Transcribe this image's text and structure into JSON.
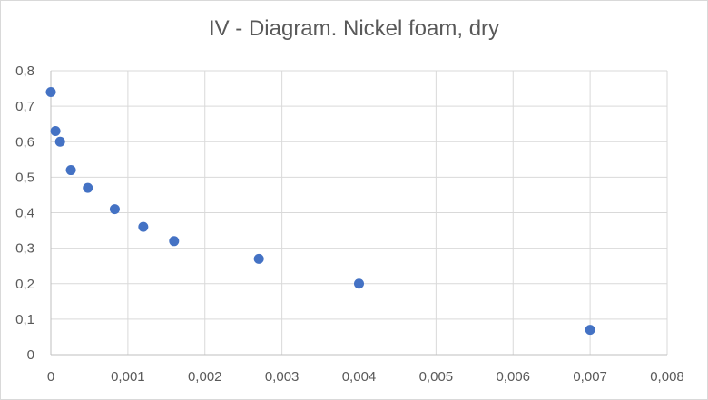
{
  "chart_data": {
    "type": "scatter",
    "title": "IV - Diagram. Nickel foam, dry",
    "xlabel": "",
    "ylabel": "",
    "xlim": [
      0,
      0.008
    ],
    "ylim": [
      0,
      0.8
    ],
    "x_ticks": [
      "0",
      "0,001",
      "0,002",
      "0,003",
      "0,004",
      "0,005",
      "0,006",
      "0,007",
      "0,008"
    ],
    "y_ticks": [
      "0",
      "0,1",
      "0,2",
      "0,3",
      "0,4",
      "0,5",
      "0,6",
      "0,7",
      "0,8"
    ],
    "grid": true,
    "legend": "none",
    "series": [
      {
        "color": "#4472c4",
        "points": [
          {
            "x": 0.0,
            "y": 0.74
          },
          {
            "x": 6e-05,
            "y": 0.63
          },
          {
            "x": 0.00012,
            "y": 0.6
          },
          {
            "x": 0.00026,
            "y": 0.52
          },
          {
            "x": 0.00048,
            "y": 0.47
          },
          {
            "x": 0.00083,
            "y": 0.41
          },
          {
            "x": 0.0012,
            "y": 0.36
          },
          {
            "x": 0.0016,
            "y": 0.32
          },
          {
            "x": 0.0027,
            "y": 0.27
          },
          {
            "x": 0.004,
            "y": 0.2
          },
          {
            "x": 0.007,
            "y": 0.07
          }
        ]
      }
    ]
  },
  "colors": {
    "gridline": "#d9d9d9",
    "axis": "#bfbfbf",
    "marker": "#4472c4",
    "text": "#595959"
  }
}
